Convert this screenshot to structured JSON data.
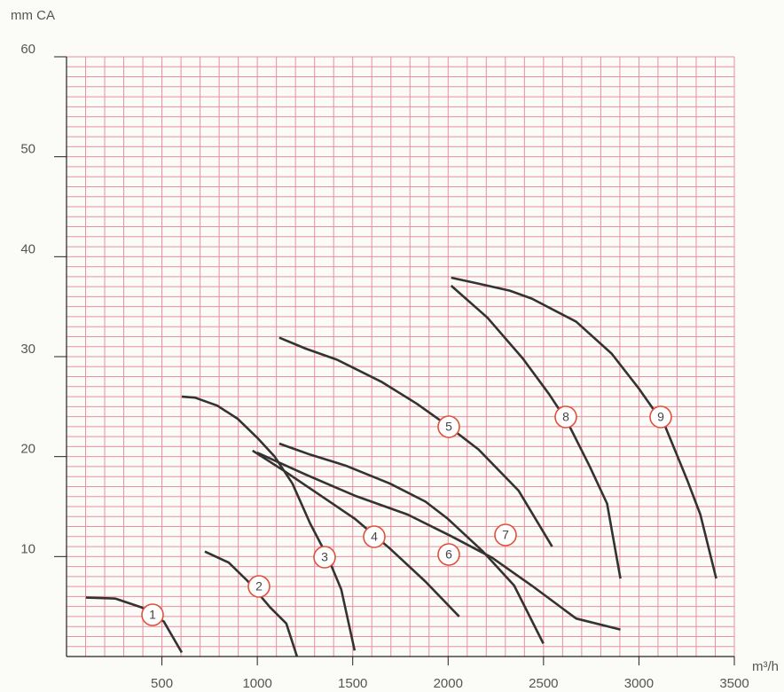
{
  "chart_data": {
    "type": "line",
    "y_label": "mm CA",
    "x_label": "m³/h",
    "xlim": [
      0,
      3500
    ],
    "xticks": [
      500,
      1000,
      1500,
      2000,
      2500,
      3000,
      3500
    ],
    "ylim": [
      0,
      60
    ],
    "yticks": [
      10,
      20,
      30,
      40,
      50,
      60
    ],
    "grid": {
      "x_step": 100,
      "y_step": 1,
      "color": "#ea8fa0"
    },
    "color": "#333333",
    "series": [
      {
        "name": "1",
        "x": [
          102,
          255,
          395,
          510,
          604
        ],
        "values": [
          5.9,
          5.8,
          4.9,
          3.5,
          0.4
        ]
      },
      {
        "name": "2",
        "x": [
          725,
          850,
          952,
          1068,
          1152,
          1208
        ],
        "values": [
          10.5,
          9.4,
          7.5,
          4.9,
          3.3,
          0
        ]
      },
      {
        "name": "3",
        "x": [
          604,
          673,
          790,
          896,
          999,
          1091,
          1184,
          1277,
          1370,
          1440,
          1510
        ],
        "values": [
          26,
          25.9,
          25.1,
          23.8,
          21.9,
          20,
          17.3,
          13.3,
          9.9,
          6.7,
          0.6
        ]
      },
      {
        "name": "4",
        "x": [
          975,
          1138,
          1324,
          1510,
          1695,
          1881,
          2058
        ],
        "values": [
          20.6,
          18.6,
          16.2,
          13.8,
          10.8,
          7.5,
          4
        ]
      },
      {
        "name": "5",
        "x": [
          1115,
          1254,
          1417,
          1649,
          1835,
          1997,
          2160,
          2369,
          2545
        ],
        "values": [
          31.9,
          30.8,
          29.7,
          27.5,
          25.3,
          23.1,
          20.7,
          16.6,
          11
        ]
      },
      {
        "name": "6",
        "x": [
          1115,
          1277,
          1463,
          1695,
          1881,
          1997,
          2183,
          2346,
          2499
        ],
        "values": [
          21.3,
          20.2,
          19.1,
          17.3,
          15.5,
          13.8,
          10.5,
          7.1,
          1.3
        ]
      },
      {
        "name": "7",
        "x": [
          999,
          1254,
          1510,
          1788,
          2020,
          2229,
          2438,
          2671,
          2903
        ],
        "values": [
          20.4,
          18.2,
          16.1,
          14.2,
          12,
          9.9,
          7.1,
          3.8,
          2.7
        ]
      },
      {
        "name": "8",
        "x": [
          2016,
          2206,
          2392,
          2531,
          2624,
          2740,
          2833,
          2903
        ],
        "values": [
          37.1,
          33.9,
          29.8,
          26.2,
          23.5,
          19.1,
          15.3,
          7.8
        ]
      },
      {
        "name": "9",
        "x": [
          2016,
          2160,
          2323,
          2439,
          2671,
          2857,
          2996,
          3136,
          3252,
          3322,
          3405
        ],
        "values": [
          37.9,
          37.3,
          36.6,
          35.8,
          33.5,
          30.3,
          26.9,
          23.1,
          17.7,
          14.2,
          7.8
        ]
      }
    ]
  }
}
